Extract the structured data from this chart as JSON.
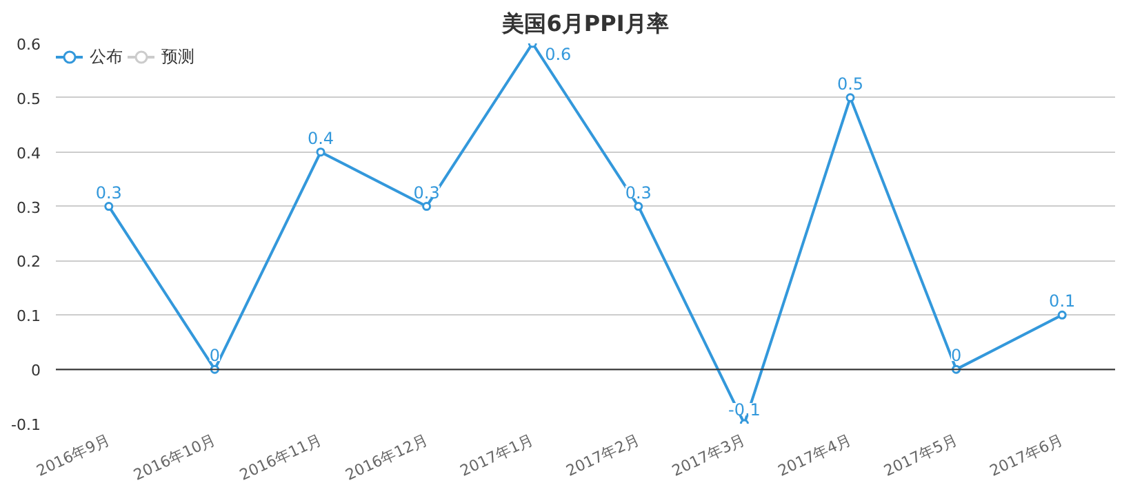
{
  "chart_data": {
    "type": "line",
    "title": "美国6月PPI月率",
    "categories": [
      "2016年9月",
      "2016年10月",
      "2016年11月",
      "2016年12月",
      "2017年1月",
      "2017年2月",
      "2017年3月",
      "2017年4月",
      "2017年5月",
      "2017年6月"
    ],
    "series": [
      {
        "name": "公布",
        "color": "#3398db",
        "values": [
          0.3,
          0,
          0.4,
          0.3,
          0.6,
          0.3,
          -0.1,
          0.5,
          0,
          0.1
        ]
      },
      {
        "name": "预测",
        "color": "#cccccc",
        "values": [
          null,
          null,
          null,
          null,
          null,
          null,
          null,
          null,
          null,
          null
        ]
      }
    ],
    "ylim": [
      -0.1,
      0.6
    ],
    "yticks": [
      -0.1,
      0,
      0.1,
      0.2,
      0.3,
      0.4,
      0.5,
      0.6
    ],
    "grid": "y",
    "legend": "top left",
    "marker": "circle",
    "line_style": "solid",
    "data_labels": true
  }
}
